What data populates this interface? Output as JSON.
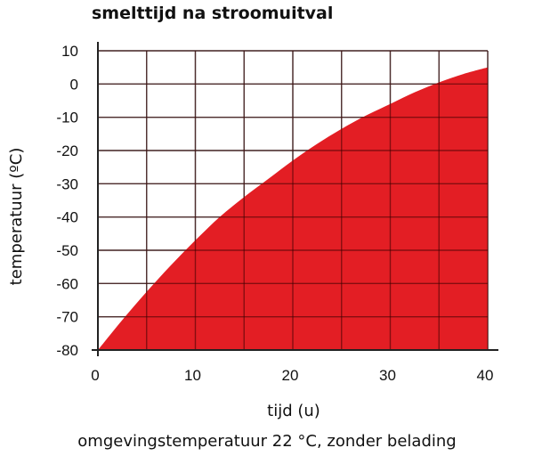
{
  "chart_data": {
    "type": "area",
    "title": "smelttijd na stroomuitval",
    "xlabel": "tijd (u)",
    "ylabel": "temperatuur (ºC)",
    "caption": "omgevingstemperatuur 22 °C, zonder belading",
    "xlim": [
      0,
      40
    ],
    "ylim": [
      -80,
      10
    ],
    "xticks": [
      0,
      10,
      20,
      30,
      40
    ],
    "yticks": [
      10,
      0,
      -10,
      -20,
      -30,
      -40,
      -50,
      -60,
      -70,
      -80
    ],
    "grid": true,
    "fill_color": "#e31e24",
    "series": [
      {
        "x": [
          0,
          2.5,
          5,
          7.5,
          10,
          12.5,
          15,
          17.5,
          20,
          22.5,
          25,
          27.5,
          30,
          32.5,
          35,
          37.5,
          40
        ],
        "y": [
          -80,
          -71,
          -62.5,
          -54.5,
          -47,
          -40,
          -34,
          -28.5,
          -23,
          -18,
          -13.5,
          -9.5,
          -6,
          -2.5,
          0.5,
          3,
          5
        ]
      }
    ]
  }
}
